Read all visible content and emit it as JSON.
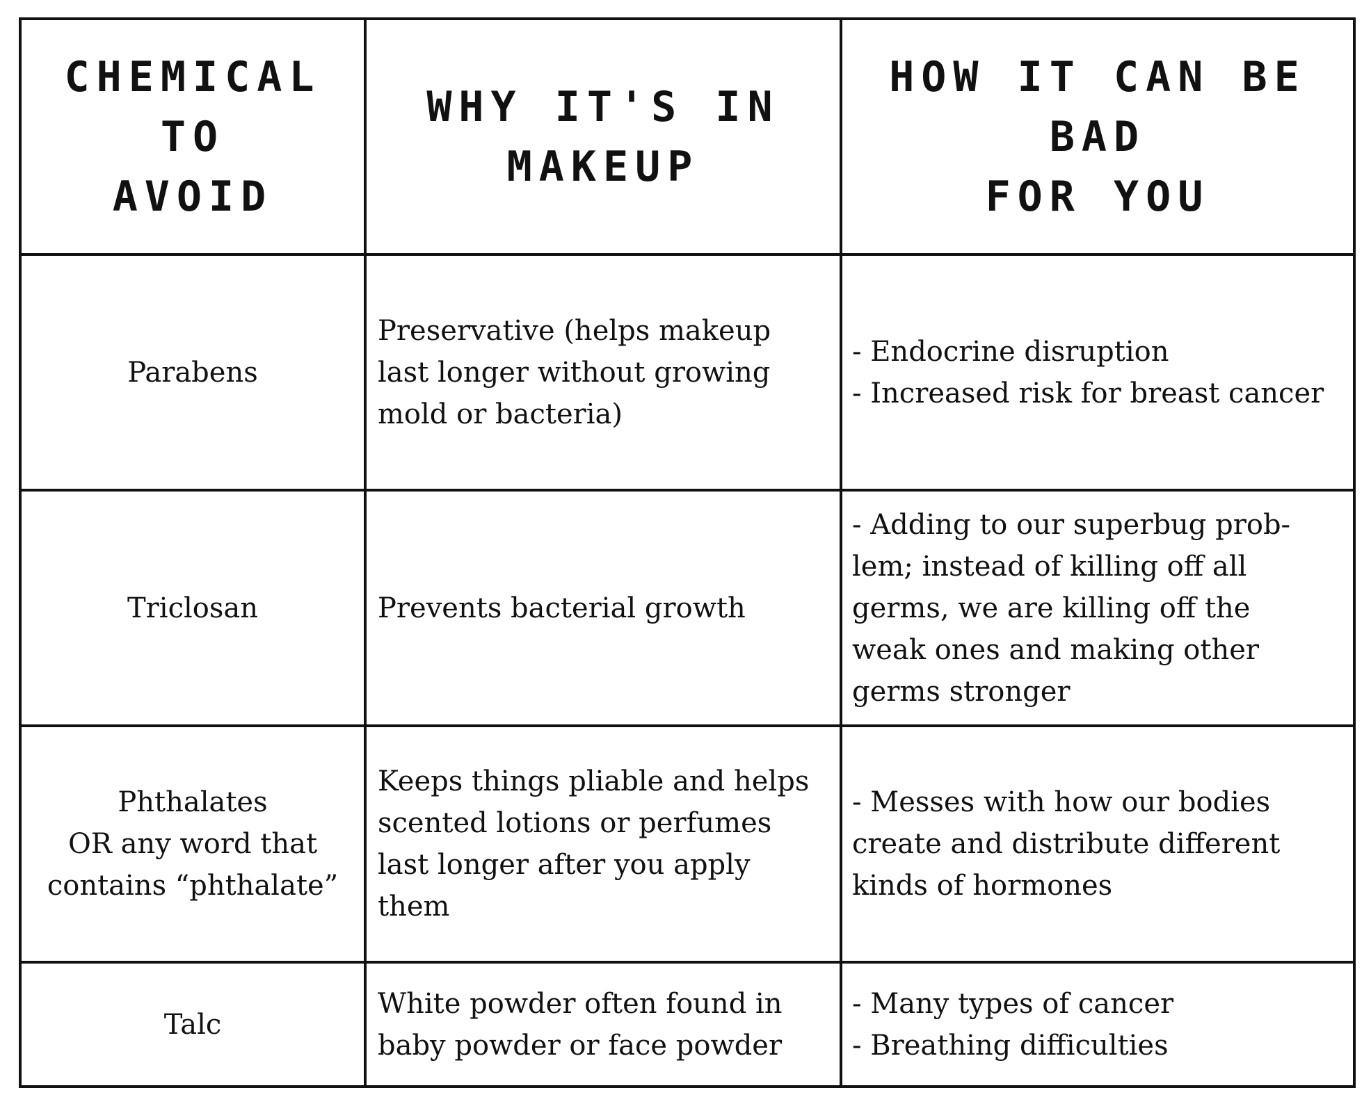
{
  "table": {
    "headers": {
      "chemical": [
        "CHEMICAL TO",
        "AVOID"
      ],
      "why": [
        "WHY IT'S IN MAKEUP"
      ],
      "bad": [
        "HOW IT CAN BE BAD",
        "FOR YOU"
      ]
    },
    "rows": [
      {
        "chemical": [
          "Parabens"
        ],
        "why": [
          "Preservative (helps makeup",
          "last longer without growing",
          "mold or bacteria)"
        ],
        "bad": [
          "- Endocrine disruption",
          "- Increased risk for breast cancer"
        ]
      },
      {
        "chemical": [
          "Triclosan"
        ],
        "why": [
          "Prevents bacterial growth"
        ],
        "bad": [
          "- Adding to our superbug prob-",
          "lem; instead of killing off all",
          "germs, we are killing off the",
          "weak ones and making other",
          "germs stronger"
        ]
      },
      {
        "chemical": [
          "Phthalates",
          "OR any word that",
          "contains “phthalate”"
        ],
        "why": [
          "Keeps things pliable and helps",
          "scented lotions or perfumes",
          "last longer after you apply",
          "them"
        ],
        "bad": [
          "- Messes with how our bodies",
          "create and distribute different",
          "kinds of hormones"
        ]
      },
      {
        "chemical": [
          "Talc"
        ],
        "why": [
          "White powder often found in",
          "baby powder or face powder"
        ],
        "bad": [
          "- Many types of cancer",
          "- Breathing difficulties"
        ]
      }
    ]
  },
  "colors": {
    "border": "#111111",
    "text": "#111111",
    "background": "#ffffff"
  }
}
